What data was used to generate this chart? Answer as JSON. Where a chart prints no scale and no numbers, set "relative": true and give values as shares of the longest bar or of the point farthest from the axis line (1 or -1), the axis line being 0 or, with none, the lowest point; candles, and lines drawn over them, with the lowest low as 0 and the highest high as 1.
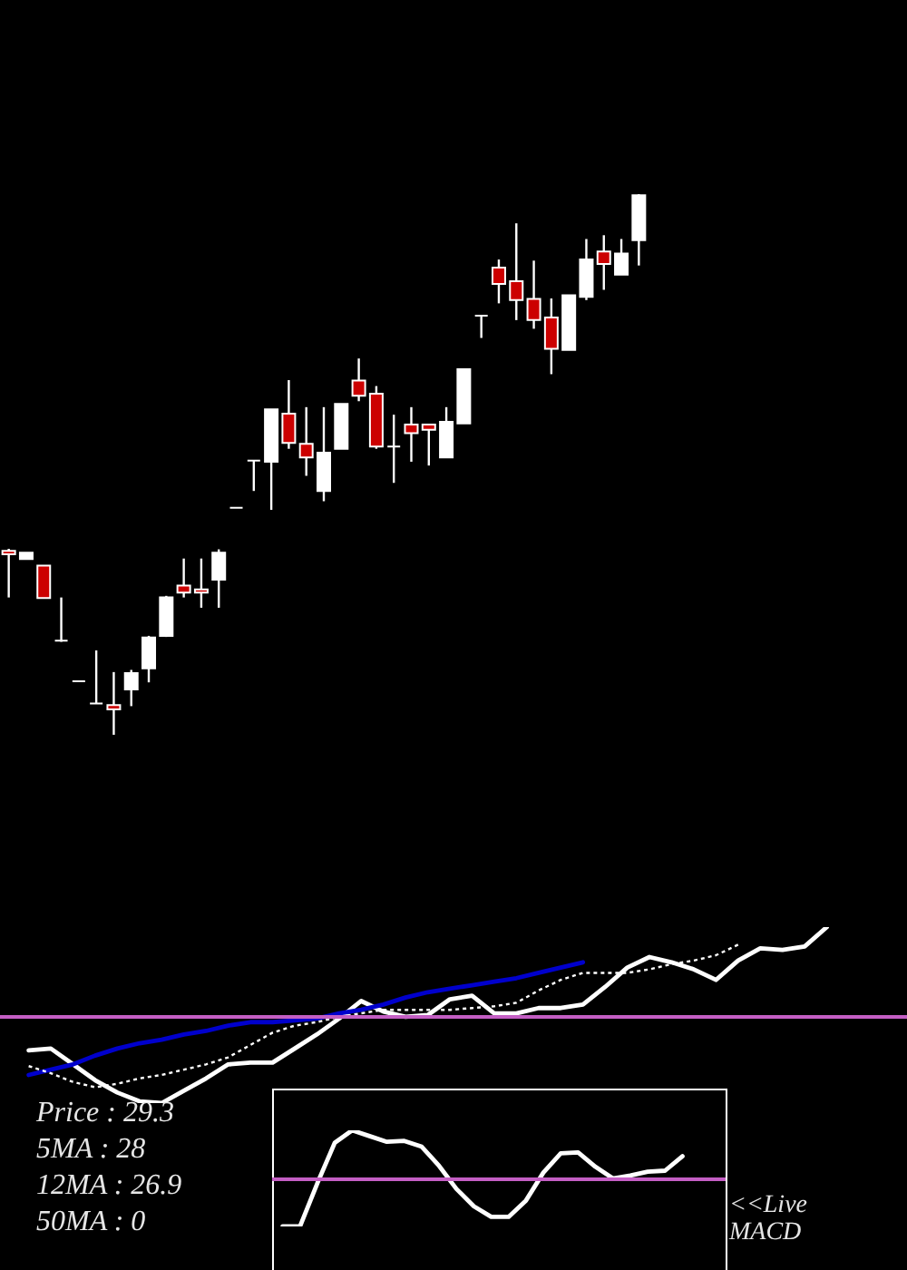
{
  "chart_data": [
    {
      "type": "candlestick",
      "relative": true,
      "categories": [
        null,
        null,
        null,
        null,
        null,
        null,
        null,
        null,
        null,
        null,
        null,
        null,
        null,
        null,
        null,
        null,
        null,
        null,
        null,
        null,
        null,
        null,
        null,
        null,
        null,
        null,
        null,
        null,
        null,
        null,
        null,
        null,
        null,
        null,
        null,
        null,
        null
      ],
      "ohlc": [
        [
          0.34,
          0.344,
          0.254,
          0.334
        ],
        [
          0.325,
          0.337,
          0.325,
          0.337
        ],
        [
          0.313,
          0.313,
          0.253,
          0.253
        ],
        [
          0.174,
          0.254,
          0.172,
          0.174
        ],
        [
          0.099,
          0.099,
          0.099,
          0.099
        ],
        [
          0.058,
          0.156,
          0.058,
          0.058
        ],
        [
          0.055,
          0.116,
          0,
          0.047
        ],
        [
          0.084,
          0.12,
          0.053,
          0.114
        ],
        [
          0.123,
          0.183,
          0.097,
          0.18
        ],
        [
          0.183,
          0.257,
          0.181,
          0.254
        ],
        [
          0.276,
          0.326,
          0.254,
          0.263
        ],
        [
          0.269,
          0.326,
          0.235,
          0.263
        ],
        [
          0.287,
          0.343,
          0.235,
          0.337
        ],
        [
          0.42,
          0.42,
          0.42,
          0.42
        ],
        [
          0.507,
          0.507,
          0.451,
          0.507
        ],
        [
          0.505,
          0.602,
          0.416,
          0.602
        ],
        [
          0.594,
          0.656,
          0.529,
          0.54
        ],
        [
          0.538,
          0.606,
          0.479,
          0.513
        ],
        [
          0.451,
          0.606,
          0.432,
          0.522
        ],
        [
          0.529,
          0.612,
          0.529,
          0.612
        ],
        [
          0.655,
          0.696,
          0.617,
          0.627
        ],
        [
          0.631,
          0.645,
          0.529,
          0.533
        ],
        [
          0.533,
          0.592,
          0.466,
          0.533
        ],
        [
          0.574,
          0.606,
          0.505,
          0.558
        ],
        [
          0.574,
          0.574,
          0.498,
          0.564
        ],
        [
          0.513,
          0.606,
          0.513,
          0.579
        ],
        [
          0.576,
          0.676,
          0.576,
          0.676
        ],
        [
          0.775,
          0.775,
          0.734,
          0.775
        ],
        [
          0.864,
          0.879,
          0.798,
          0.834
        ],
        [
          0.839,
          0.946,
          0.767,
          0.804
        ],
        [
          0.806,
          0.877,
          0.751,
          0.767
        ],
        [
          0.772,
          0.807,
          0.667,
          0.714
        ],
        [
          0.712,
          0.813,
          0.712,
          0.813
        ],
        [
          0.81,
          0.917,
          0.804,
          0.879
        ],
        [
          0.894,
          0.924,
          0.823,
          0.871
        ],
        [
          0.851,
          0.917,
          0.851,
          0.89
        ],
        [
          0.915,
          1,
          0.868,
          0.998
        ]
      ],
      "colors": [
        "#cc0000",
        "#ffffff",
        "#cc0000",
        "#ffffff",
        "#ffffff",
        "#ffffff",
        "#cc0000",
        "#ffffff",
        "#ffffff",
        "#ffffff",
        "#cc0000",
        "#cc0000",
        "#ffffff",
        "#ffffff",
        "#ffffff",
        "#ffffff",
        "#cc0000",
        "#cc0000",
        "#ffffff",
        "#ffffff",
        "#cc0000",
        "#cc0000",
        "#ffffff",
        "#cc0000",
        "#cc0000",
        "#ffffff",
        "#ffffff",
        "#ffffff",
        "#cc0000",
        "#cc0000",
        "#cc0000",
        "#cc0000",
        "#ffffff",
        "#ffffff",
        "#cc0000",
        "#ffffff",
        "#ffffff"
      ]
    },
    {
      "type": "line",
      "relative": true,
      "categories": [
        null,
        null,
        null,
        null,
        null,
        null,
        null,
        null,
        null,
        null,
        null,
        null,
        null,
        null,
        null,
        null,
        null,
        null,
        null,
        null,
        null,
        null,
        null,
        null,
        null,
        null,
        null,
        null,
        null,
        null,
        null,
        null,
        null,
        null,
        null,
        null,
        null
      ],
      "series": [
        {
          "color": "#ffffff",
          "line_style": "solid",
          "values": [
            0.3,
            0.31,
            0.22,
            0.13,
            0.06,
            0.01,
            0,
            0.07,
            0.14,
            0.22,
            0.23,
            0.23,
            0.31,
            0.39,
            0.48,
            0.58,
            0.52,
            0.49,
            0.5,
            0.59,
            0.61,
            0.51,
            0.51,
            0.54,
            0.54,
            0.56,
            0.66,
            0.77,
            0.83,
            0.8,
            0.76,
            0.7,
            0.81,
            0.88,
            0.87,
            0.89,
            1
          ]
        },
        {
          "color": "#0000cc",
          "line_style": "solid",
          "values": [
            0.16,
            0.19,
            0.22,
            0.27,
            0.31,
            0.34,
            0.36,
            0.39,
            0.41,
            0.44,
            0.46,
            0.46,
            0.47,
            0.48,
            0.51,
            0.53,
            0.56,
            0.6,
            0.63,
            0.65,
            0.67,
            0.69,
            0.71,
            0.74,
            0.77,
            0.8,
            null,
            null,
            null,
            null,
            null,
            null,
            null,
            null,
            null,
            null,
            null
          ]
        },
        {
          "color": "#ffffff",
          "line_style": "dotted",
          "values": [
            0.21,
            0.17,
            0.12,
            0.09,
            0.11,
            0.14,
            0.16,
            0.19,
            0.22,
            0.26,
            0.33,
            0.4,
            0.44,
            0.46,
            0.49,
            0.51,
            0.53,
            0.53,
            0.53,
            0.53,
            0.54,
            0.55,
            0.57,
            0.64,
            0.7,
            0.74,
            0.74,
            0.74,
            0.76,
            0.79,
            0.81,
            0.84,
            0.9,
            null,
            null,
            null,
            null
          ]
        }
      ],
      "ref_lines": [
        {
          "axis": "y",
          "value": 0.49,
          "color": "#c45ec4"
        }
      ],
      "annotations": [
        "Price : 29.3",
        "5MA : 28",
        "12MA : 26.9",
        "50MA : 0"
      ]
    },
    {
      "type": "line",
      "relative": true,
      "categories": [
        null,
        null,
        null,
        null,
        null,
        null,
        null,
        null,
        null,
        null,
        null,
        null,
        null,
        null,
        null,
        null,
        null,
        null,
        null,
        null,
        null,
        null,
        null,
        null
      ],
      "series": [
        {
          "color": "#ffffff",
          "line_style": "solid",
          "values": [
            0,
            0,
            0.45,
            0.87,
            1,
            0.94,
            0.88,
            0.89,
            0.83,
            0.63,
            0.39,
            0.21,
            0.1,
            0.1,
            0.27,
            0.56,
            0.76,
            0.77,
            0.62,
            0.5,
            0.53,
            0.57,
            0.58,
            0.73
          ]
        }
      ],
      "ref_lines": [
        {
          "axis": "y",
          "value": 0.49,
          "color": "#c45ec4"
        }
      ],
      "annotations": [
        "<<Live MACD"
      ]
    }
  ]
}
